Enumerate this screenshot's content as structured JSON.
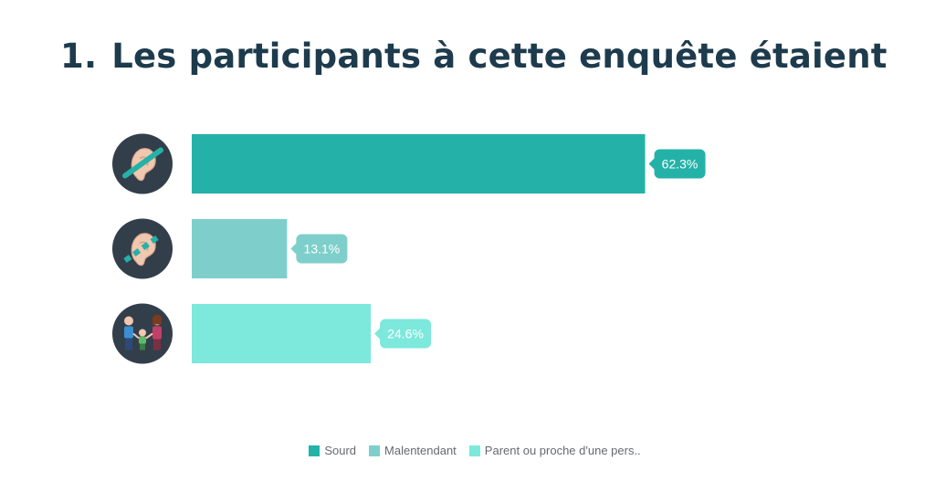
{
  "title": {
    "number": "1.",
    "text": "Les participants à cette enquête étaient"
  },
  "chart_data": {
    "type": "bar",
    "orientation": "horizontal",
    "xlim": [
      0,
      100
    ],
    "categories": [
      "Sourd",
      "Malentendant",
      "Parent ou proche d'une pers.."
    ],
    "values": [
      62.3,
      13.1,
      24.6
    ],
    "data_labels": [
      "62.3%",
      "13.1%",
      "24.6%"
    ],
    "colors": [
      "#24b2a8",
      "#7ecfcb",
      "#7de8dc"
    ],
    "icons": [
      "crossed-ear-icon",
      "hard-of-hearing-ear-icon",
      "family-icon"
    ],
    "grid": false,
    "legend_position": "bottom"
  },
  "legend": [
    {
      "label": "Sourd",
      "color": "#24b2a8"
    },
    {
      "label": "Malentendant",
      "color": "#7ecfcb"
    },
    {
      "label": "Parent ou proche d'une pers..",
      "color": "#7de8dc"
    }
  ]
}
